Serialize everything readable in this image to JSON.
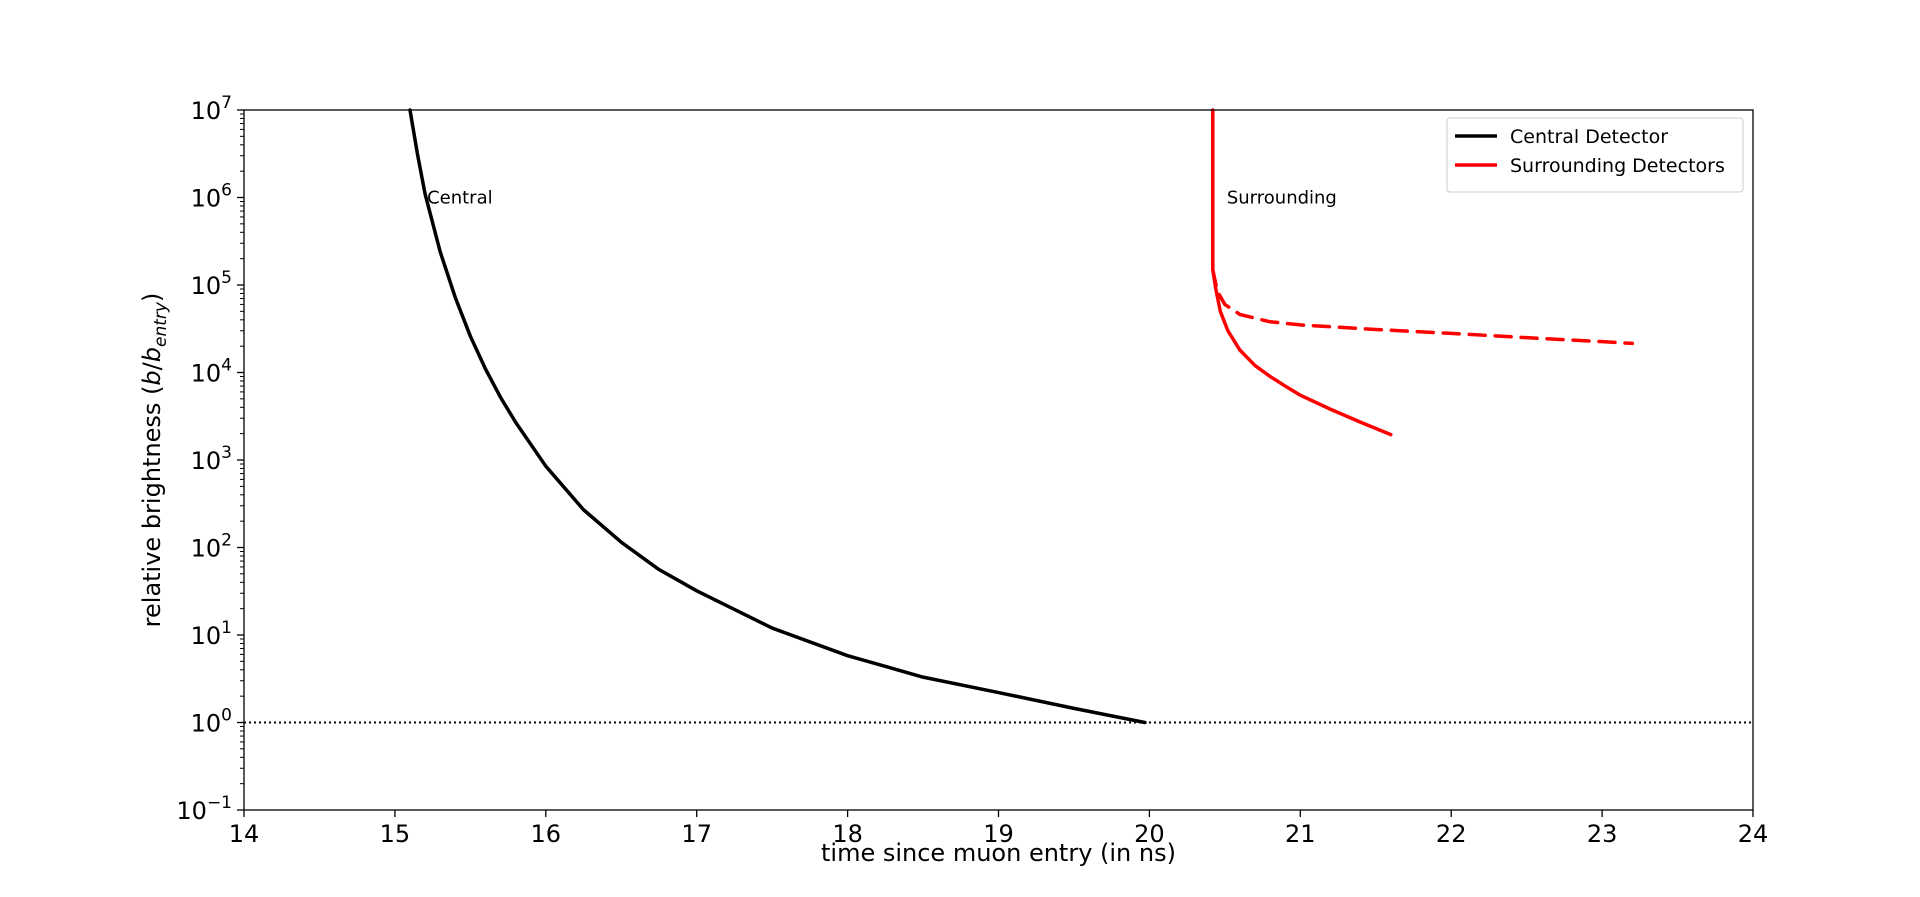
{
  "chart_data": {
    "type": "line",
    "xlabel": "time since muon entry (in ns)",
    "ylabel": "relative brightness (b/b_entry)",
    "ylabel_parts": {
      "prefix": "relative brightness (",
      "var": "b",
      "slash": "/",
      "var2": "b",
      "sub": "entry",
      "suffix": ")"
    },
    "xlim": [
      14,
      24
    ],
    "ylim_log10": [
      -1,
      7
    ],
    "yscale": "log",
    "x_ticks": [
      "14",
      "15",
      "16",
      "17",
      "18",
      "19",
      "20",
      "21",
      "22",
      "23",
      "24"
    ],
    "y_ticks": [
      {
        "base": "10",
        "exp": "−1"
      },
      {
        "base": "10",
        "exp": "0"
      },
      {
        "base": "10",
        "exp": "1"
      },
      {
        "base": "10",
        "exp": "2"
      },
      {
        "base": "10",
        "exp": "3"
      },
      {
        "base": "10",
        "exp": "4"
      },
      {
        "base": "10",
        "exp": "5"
      },
      {
        "base": "10",
        "exp": "6"
      },
      {
        "base": "10",
        "exp": "7"
      }
    ],
    "grid": false,
    "legend_position": "top-right",
    "reference_line": {
      "y": 1,
      "style": "dotted",
      "color": "#000000"
    },
    "annotations": [
      {
        "text": "Central",
        "x": 15.2,
        "y": 1000000
      },
      {
        "text": "Surrounding",
        "x": 20.5,
        "y": 1000000
      }
    ],
    "series": [
      {
        "name": "Central Detector",
        "color": "#000000",
        "style": "solid",
        "in_legend": true,
        "points": [
          [
            15.1,
            10000000
          ],
          [
            15.15,
            3100000
          ],
          [
            15.2,
            1100000
          ],
          [
            15.3,
            240000
          ],
          [
            15.4,
            72000
          ],
          [
            15.5,
            26000
          ],
          [
            15.6,
            11000
          ],
          [
            15.7,
            5200
          ],
          [
            15.8,
            2700
          ],
          [
            16.0,
            850
          ],
          [
            16.25,
            270
          ],
          [
            16.5,
            115
          ],
          [
            16.75,
            56
          ],
          [
            17.0,
            32
          ],
          [
            17.5,
            12
          ],
          [
            18.0,
            5.8
          ],
          [
            18.5,
            3.3
          ],
          [
            19.0,
            2.2
          ],
          [
            19.5,
            1.45
          ],
          [
            19.97,
            1.0
          ]
        ]
      },
      {
        "name": "Surrounding Detectors",
        "color": "#ff0000",
        "style": "solid",
        "in_legend": true,
        "points": [
          [
            20.42,
            10000000
          ],
          [
            20.42,
            150000
          ],
          [
            20.44,
            90000
          ],
          [
            20.47,
            50000
          ],
          [
            20.52,
            30000
          ],
          [
            20.6,
            18000
          ],
          [
            20.7,
            12000
          ],
          [
            20.8,
            9000
          ],
          [
            20.9,
            7000
          ],
          [
            21.0,
            5500
          ],
          [
            21.2,
            3800
          ],
          [
            21.4,
            2700
          ],
          [
            21.6,
            1950
          ]
        ]
      },
      {
        "name": "",
        "color": "#ff0000",
        "style": "dashed",
        "in_legend": false,
        "points": [
          [
            20.42,
            150000
          ],
          [
            20.45,
            85000
          ],
          [
            20.5,
            60000
          ],
          [
            20.6,
            46000
          ],
          [
            20.8,
            38000
          ],
          [
            21.0,
            35000
          ],
          [
            21.5,
            31000
          ],
          [
            22.0,
            28000
          ],
          [
            22.5,
            25000
          ],
          [
            23.0,
            22500
          ],
          [
            23.2,
            21500
          ]
        ]
      }
    ]
  }
}
